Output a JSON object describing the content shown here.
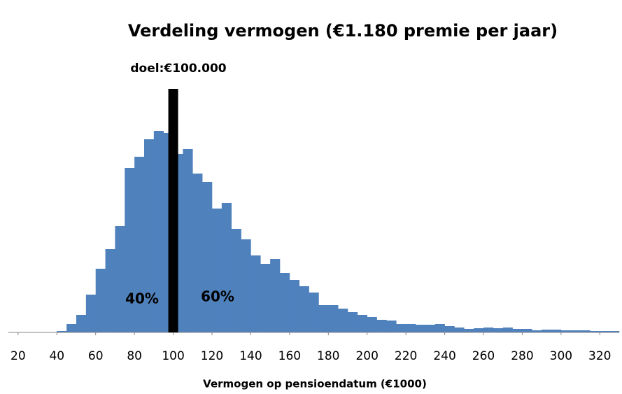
{
  "chart_data": {
    "type": "histogram",
    "title": "Verdeling vermogen (€1.180 premie per jaar)",
    "x_label": "Vermogen op pensioendatum (€1000)",
    "bins": [
      40,
      45,
      50,
      55,
      60,
      65,
      70,
      75,
      80,
      85,
      90,
      95,
      100,
      105,
      110,
      115,
      120,
      125,
      130,
      135,
      140,
      145,
      150,
      155,
      160,
      165,
      170,
      175,
      180,
      185,
      190,
      195,
      200,
      205,
      210,
      215,
      220,
      225,
      230,
      235,
      240,
      245,
      250,
      255,
      260,
      265,
      270,
      275,
      280,
      285,
      290,
      295,
      300,
      305,
      310,
      315,
      320,
      325,
      330
    ],
    "values": [
      2,
      12,
      25,
      54,
      91,
      119,
      152,
      235,
      251,
      276,
      288,
      285,
      255,
      262,
      227,
      215,
      177,
      185,
      148,
      133,
      110,
      98,
      105,
      85,
      75,
      66,
      57,
      39,
      39,
      34,
      29,
      25,
      22,
      18,
      17,
      12,
      12,
      11,
      11,
      12,
      9,
      7,
      5,
      6,
      7,
      6,
      7,
      5,
      5,
      3,
      4,
      4,
      3,
      3,
      3,
      2,
      2,
      2
    ],
    "color": "#4f81bd",
    "xlim": [
      15,
      330
    ],
    "xticks": [
      20,
      40,
      60,
      80,
      100,
      120,
      140,
      160,
      180,
      200,
      220,
      240,
      260,
      280,
      300,
      320
    ],
    "ylim": [
      0,
      300
    ],
    "target": {
      "value": 100,
      "label": "doel:€100.000",
      "color": "#000000"
    },
    "annotations": [
      "40%",
      "60%"
    ],
    "grid": false
  }
}
